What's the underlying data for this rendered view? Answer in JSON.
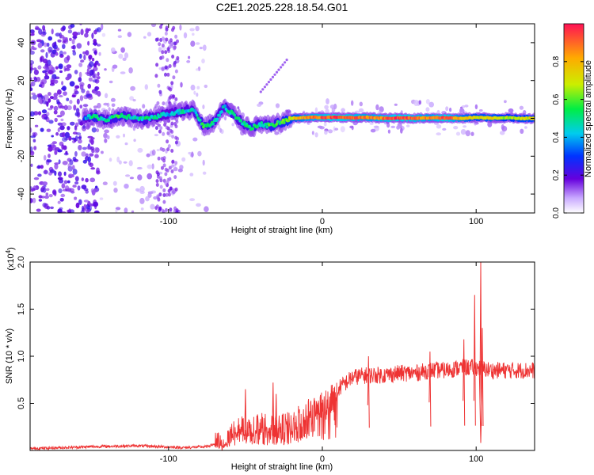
{
  "title": "C2E1.2025.228.18.54.G01",
  "chart_data": [
    {
      "type": "heatmap",
      "xlabel": "Height of straight line (km)",
      "ylabel": "Frequency (Hz)",
      "xlim": [
        -190,
        138
      ],
      "ylim": [
        -50,
        50
      ],
      "xticks": [
        -100,
        0,
        100
      ],
      "yticks": [
        -40,
        -20,
        0,
        20,
        40
      ],
      "colorbar": {
        "label": "Normalized spectral amplitude",
        "range": [
          0,
          1
        ],
        "ticks": [
          "0.0",
          "0.2",
          "0.4",
          "0.6",
          "0.8"
        ]
      },
      "ridge": [
        {
          "x": -155,
          "f": 0.0,
          "a": 0.35
        },
        {
          "x": -148,
          "f": 1.0,
          "a": 0.55
        },
        {
          "x": -140,
          "f": -1.0,
          "a": 0.45
        },
        {
          "x": -132,
          "f": 1.5,
          "a": 0.55
        },
        {
          "x": -124,
          "f": 0.5,
          "a": 0.45
        },
        {
          "x": -116,
          "f": -0.5,
          "a": 0.5
        },
        {
          "x": -108,
          "f": 1.0,
          "a": 0.45
        },
        {
          "x": -100,
          "f": 2.5,
          "a": 0.4
        },
        {
          "x": -92,
          "f": 3.5,
          "a": 0.45
        },
        {
          "x": -84,
          "f": 5.0,
          "a": 0.45
        },
        {
          "x": -77,
          "f": -4.5,
          "a": 0.55
        },
        {
          "x": -70,
          "f": -2.0,
          "a": 0.5
        },
        {
          "x": -64,
          "f": 6.0,
          "a": 0.45
        },
        {
          "x": -58,
          "f": 2.5,
          "a": 0.5
        },
        {
          "x": -52,
          "f": -2.5,
          "a": 0.45
        },
        {
          "x": -46,
          "f": -5.0,
          "a": 0.55
        },
        {
          "x": -40,
          "f": -3.0,
          "a": 0.45
        },
        {
          "x": -34,
          "f": -4.0,
          "a": 0.55
        },
        {
          "x": -28,
          "f": -2.5,
          "a": 0.55
        },
        {
          "x": -20,
          "f": 0.0,
          "a": 0.7
        },
        {
          "x": -10,
          "f": 0.5,
          "a": 0.85
        },
        {
          "x": 0,
          "f": 0.5,
          "a": 0.9
        },
        {
          "x": 10,
          "f": 0.5,
          "a": 0.95
        },
        {
          "x": 20,
          "f": 0.3,
          "a": 0.9
        },
        {
          "x": 30,
          "f": 0.5,
          "a": 0.85
        },
        {
          "x": 40,
          "f": 0.0,
          "a": 0.9
        },
        {
          "x": 50,
          "f": 0.2,
          "a": 0.95
        },
        {
          "x": 60,
          "f": 0.0,
          "a": 0.9
        },
        {
          "x": 70,
          "f": 0.3,
          "a": 0.85
        },
        {
          "x": 80,
          "f": 0.2,
          "a": 0.95
        },
        {
          "x": 90,
          "f": 0.0,
          "a": 0.8
        },
        {
          "x": 100,
          "f": 0.5,
          "a": 0.7
        },
        {
          "x": 110,
          "f": 0.2,
          "a": 0.75
        },
        {
          "x": 120,
          "f": 0.3,
          "a": 0.65
        },
        {
          "x": 130,
          "f": 0.0,
          "a": 0.7
        }
      ]
    },
    {
      "type": "line",
      "xlabel": "Height of straight line (km)",
      "ylabel": "SNR (10 * v/v)",
      "yscale_label": "(x10",
      "yscale_exp": "4",
      "yscale_close": ")",
      "xlim": [
        -190,
        138
      ],
      "ylim": [
        0,
        2.0
      ],
      "xticks": [
        -100,
        0,
        100
      ],
      "yticks": [
        "0.5",
        "1.0",
        "1.5",
        "2.0"
      ],
      "color": "#ee3333",
      "envelope": [
        {
          "x": -190,
          "y": 0.02
        },
        {
          "x": -150,
          "y": 0.04
        },
        {
          "x": -120,
          "y": 0.05
        },
        {
          "x": -90,
          "y": 0.03
        },
        {
          "x": -75,
          "y": 0.04
        },
        {
          "x": -65,
          "y": 0.1
        },
        {
          "x": -58,
          "y": 0.25
        },
        {
          "x": -50,
          "y": 0.25
        },
        {
          "x": -40,
          "y": 0.3
        },
        {
          "x": -30,
          "y": 0.25
        },
        {
          "x": -20,
          "y": 0.3
        },
        {
          "x": -10,
          "y": 0.42
        },
        {
          "x": 0,
          "y": 0.5
        },
        {
          "x": 10,
          "y": 0.65
        },
        {
          "x": 20,
          "y": 0.78
        },
        {
          "x": 30,
          "y": 0.8
        },
        {
          "x": 40,
          "y": 0.8
        },
        {
          "x": 50,
          "y": 0.82
        },
        {
          "x": 60,
          "y": 0.82
        },
        {
          "x": 70,
          "y": 0.85
        },
        {
          "x": 80,
          "y": 0.85
        },
        {
          "x": 90,
          "y": 0.88
        },
        {
          "x": 100,
          "y": 0.88
        },
        {
          "x": 110,
          "y": 0.85
        },
        {
          "x": 120,
          "y": 0.85
        },
        {
          "x": 138,
          "y": 0.85
        }
      ],
      "spikes": [
        {
          "x": -50,
          "y": 0.65
        },
        {
          "x": -32,
          "y": 0.72
        },
        {
          "x": -30,
          "y": 0.6
        },
        {
          "x": 30,
          "y": 1.0
        },
        {
          "x": 70,
          "y": 1.05
        },
        {
          "x": 92,
          "y": 1.18
        },
        {
          "x": 99,
          "y": 1.65
        },
        {
          "x": 103,
          "y": 2.0
        },
        {
          "x": 104,
          "y": 1.3
        }
      ]
    }
  ]
}
